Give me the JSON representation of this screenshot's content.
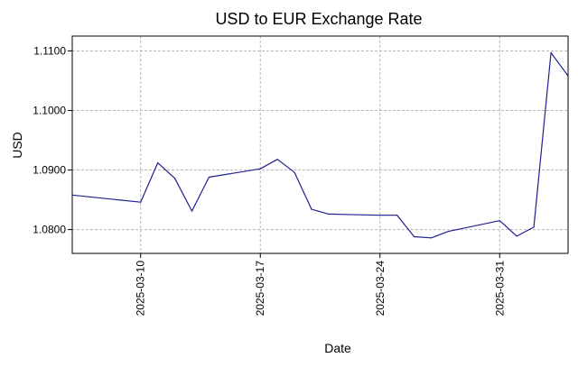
{
  "chart_data": {
    "type": "line",
    "title": "USD to EUR Exchange Rate",
    "xlabel": "Date",
    "ylabel": "USD",
    "grid": true,
    "line_color": "#1f1f8f",
    "xlim": [
      "2025-03-06",
      "2025-04-04"
    ],
    "ylim": [
      1.076,
      1.1125
    ],
    "y_ticks": [
      1.08,
      1.09,
      1.1,
      1.11
    ],
    "y_tick_labels": [
      "1.0800",
      "1.0900",
      "1.1000",
      "1.1100"
    ],
    "x_ticks": [
      "2025-03-10",
      "2025-03-17",
      "2025-03-24",
      "2025-03-31"
    ],
    "x_tick_labels": [
      "2025-03-10",
      "2025-03-17",
      "2025-03-24",
      "2025-03-31"
    ],
    "series": [
      {
        "x": [
          "2025-03-06",
          "2025-03-07",
          "2025-03-10",
          "2025-03-11",
          "2025-03-12",
          "2025-03-13",
          "2025-03-14",
          "2025-03-17",
          "2025-03-18",
          "2025-03-19",
          "2025-03-20",
          "2025-03-21",
          "2025-03-24",
          "2025-03-25",
          "2025-03-26",
          "2025-03-27",
          "2025-03-28",
          "2025-03-31",
          "2025-04-01",
          "2025-04-02",
          "2025-04-03",
          "2025-04-04"
        ],
        "y": [
          1.0858,
          1.0855,
          1.0846,
          1.0912,
          1.0886,
          1.0831,
          1.0888,
          1.0902,
          1.0918,
          1.0896,
          1.0834,
          1.0826,
          1.0824,
          1.0824,
          1.0788,
          1.0786,
          1.0797,
          1.0815,
          1.0789,
          1.0804,
          1.1097,
          1.1058
        ]
      }
    ]
  }
}
